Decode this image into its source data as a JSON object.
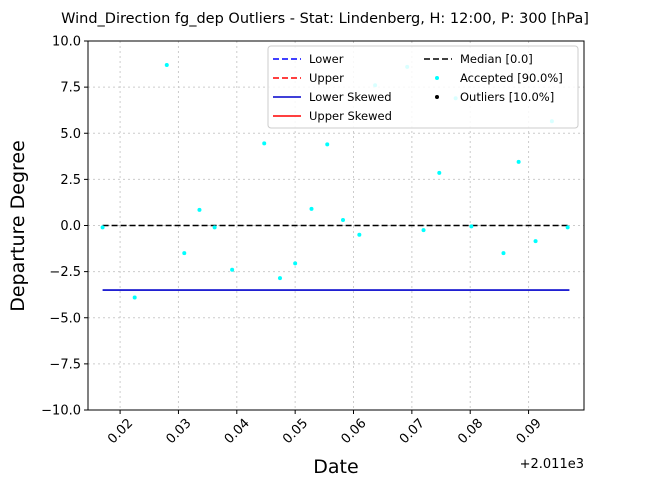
{
  "chart_data": {
    "type": "scatter",
    "title": "Wind_Direction fg_dep Outliers - Stat: Lindenberg, H: 12:00, P: 300 [hPa]",
    "xlabel": "Date",
    "ylabel": "Departure Degree",
    "x_offset_label": "+2.011e3",
    "xlim": [
      2011.0145,
      2011.0995
    ],
    "ylim": [
      -10.0,
      10.0
    ],
    "grid": true,
    "legend_position": "upper-right",
    "x_ticks": [
      {
        "value": 2011.02,
        "label": "0.02"
      },
      {
        "value": 2011.03,
        "label": "0.03"
      },
      {
        "value": 2011.04,
        "label": "0.04"
      },
      {
        "value": 2011.05,
        "label": "0.05"
      },
      {
        "value": 2011.06,
        "label": "0.06"
      },
      {
        "value": 2011.07,
        "label": "0.07"
      },
      {
        "value": 2011.08,
        "label": "0.08"
      },
      {
        "value": 2011.09,
        "label": "0.09"
      }
    ],
    "y_ticks": [
      {
        "value": 10.0,
        "label": "10.0"
      },
      {
        "value": 7.5,
        "label": "7.5"
      },
      {
        "value": 5.0,
        "label": "5.0"
      },
      {
        "value": 2.5,
        "label": "2.5"
      },
      {
        "value": 0.0,
        "label": "0.0"
      },
      {
        "value": -2.5,
        "label": "−2.5"
      },
      {
        "value": -5.0,
        "label": "−5.0"
      },
      {
        "value": -7.5,
        "label": "−7.5"
      },
      {
        "value": -10.0,
        "label": "−10.0"
      }
    ],
    "lines": [
      {
        "name": "Median [0.0]",
        "color": "#000000",
        "style": "dashed",
        "x": [
          2011.017,
          2011.097
        ],
        "y": [
          0.0,
          0.0
        ]
      },
      {
        "name": "Lower Skewed",
        "color": "#0000cc",
        "style": "solid",
        "x": [
          2011.017,
          2011.097
        ],
        "y": [
          -3.5,
          -3.5
        ]
      }
    ],
    "series": [
      {
        "name": "Accepted [90.0%]",
        "color": "#00ffff",
        "points": [
          {
            "x": 2011.017,
            "y": -0.1
          },
          {
            "x": 2011.0225,
            "y": -3.9
          },
          {
            "x": 2011.028,
            "y": 8.7
          },
          {
            "x": 2011.031,
            "y": -1.5
          },
          {
            "x": 2011.0336,
            "y": 0.85
          },
          {
            "x": 2011.0362,
            "y": -0.1
          },
          {
            "x": 2011.0392,
            "y": -2.4
          },
          {
            "x": 2011.0447,
            "y": 4.45
          },
          {
            "x": 2011.0474,
            "y": -2.85
          },
          {
            "x": 2011.05,
            "y": -2.05
          },
          {
            "x": 2011.0528,
            "y": 0.9
          },
          {
            "x": 2011.0555,
            "y": 4.4
          },
          {
            "x": 2011.0582,
            "y": 0.3
          },
          {
            "x": 2011.061,
            "y": -0.5
          },
          {
            "x": 2011.0637,
            "y": 7.6
          },
          {
            "x": 2011.0692,
            "y": 8.6
          },
          {
            "x": 2011.072,
            "y": -0.25
          },
          {
            "x": 2011.0747,
            "y": 2.85
          },
          {
            "x": 2011.0775,
            "y": 6.9
          },
          {
            "x": 2011.0802,
            "y": -0.05
          },
          {
            "x": 2011.0857,
            "y": -1.5
          },
          {
            "x": 2011.0883,
            "y": 3.45
          },
          {
            "x": 2011.0912,
            "y": -0.85
          },
          {
            "x": 2011.094,
            "y": 5.65
          },
          {
            "x": 2011.0967,
            "y": -0.1
          }
        ]
      },
      {
        "name": "Outliers [10.0%]",
        "color": "#000000",
        "points": []
      }
    ],
    "legend": [
      {
        "label": "Lower",
        "color": "#0000ff",
        "style": "dashed"
      },
      {
        "label": "Upper",
        "color": "#ff0000",
        "style": "dashed"
      },
      {
        "label": "Lower Skewed",
        "color": "#0000cc",
        "style": "solid"
      },
      {
        "label": "Upper Skewed",
        "color": "#ff0000",
        "style": "solid"
      },
      {
        "label": "Median [0.0]",
        "color": "#000000",
        "style": "dashed"
      },
      {
        "label": "Accepted [90.0%]",
        "color": "#00ffff",
        "style": "marker"
      },
      {
        "label": "Outliers [10.0%]",
        "color": "#000000",
        "style": "marker"
      }
    ]
  }
}
